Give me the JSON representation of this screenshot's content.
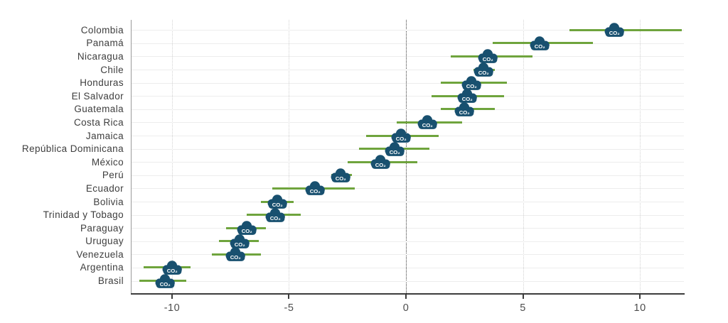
{
  "chart_data": {
    "type": "scatter",
    "subtype": "dot-and-interval",
    "title": "",
    "xlabel": "",
    "ylabel": "",
    "xlim": [
      -11.73,
      11.88
    ],
    "x_ticks": [
      -10,
      -5,
      0,
      5,
      10
    ],
    "x_tick_labels": [
      "-10",
      "-5",
      "0",
      "5",
      "10"
    ],
    "zero_reference_line": 0,
    "grid": "vertical-dotted-plus-horizontal-row-lines",
    "legend": "none",
    "marker": "co2-cloud-icon",
    "marker_label": "CO₂",
    "colors": {
      "marker": "#18506f",
      "marker_text": "#ffffff",
      "interval_line": "#6fa43d",
      "axis_line": "#3c3c3c",
      "left_axis_line": "#9a9a9a",
      "vertical_grid": "#d2d2d2",
      "zero_line": "#3a3a3a",
      "row_grid": "#ededed",
      "label_text": "#3e3e3e",
      "tick_text": "#4d4d4d"
    },
    "points": [
      {
        "label": "Colombia",
        "value": 8.9,
        "lo": 7.0,
        "hi": 11.8
      },
      {
        "label": "Panamá",
        "value": 5.7,
        "lo": 3.7,
        "hi": 8.0
      },
      {
        "label": "Nicaragua",
        "value": 3.5,
        "lo": 1.9,
        "hi": 5.4
      },
      {
        "label": "Chile",
        "value": 3.3,
        "lo": 2.9,
        "hi": 3.8
      },
      {
        "label": "Honduras",
        "value": 2.8,
        "lo": 1.5,
        "hi": 4.3
      },
      {
        "label": "El Salvador",
        "value": 2.6,
        "lo": 1.1,
        "hi": 4.2
      },
      {
        "label": "Guatemala",
        "value": 2.5,
        "lo": 1.5,
        "hi": 3.8
      },
      {
        "label": "Costa Rica",
        "value": 0.9,
        "lo": -0.4,
        "hi": 2.4
      },
      {
        "label": "Jamaica",
        "value": -0.2,
        "lo": -1.7,
        "hi": 1.4
      },
      {
        "label": "República Dominicana",
        "value": -0.5,
        "lo": -2.0,
        "hi": 1.0
      },
      {
        "label": "México",
        "value": -1.1,
        "lo": -2.5,
        "hi": 0.5
      },
      {
        "label": "Perú",
        "value": -2.8,
        "lo": -3.2,
        "hi": -2.3
      },
      {
        "label": "Ecuador",
        "value": -3.9,
        "lo": -5.7,
        "hi": -2.2
      },
      {
        "label": "Bolivia",
        "value": -5.5,
        "lo": -6.2,
        "hi": -4.8
      },
      {
        "label": "Trinidad y Tobago",
        "value": -5.6,
        "lo": -6.8,
        "hi": -4.5
      },
      {
        "label": "Paraguay",
        "value": -6.8,
        "lo": -7.7,
        "hi": -6.0
      },
      {
        "label": "Uruguay",
        "value": -7.1,
        "lo": -8.0,
        "hi": -6.3
      },
      {
        "label": "Venezuela",
        "value": -7.3,
        "lo": -8.3,
        "hi": -6.2
      },
      {
        "label": "Argentina",
        "value": -10.0,
        "lo": -11.2,
        "hi": -9.2
      },
      {
        "label": "Brasil",
        "value": -10.3,
        "lo": -11.4,
        "hi": -9.4
      }
    ]
  }
}
